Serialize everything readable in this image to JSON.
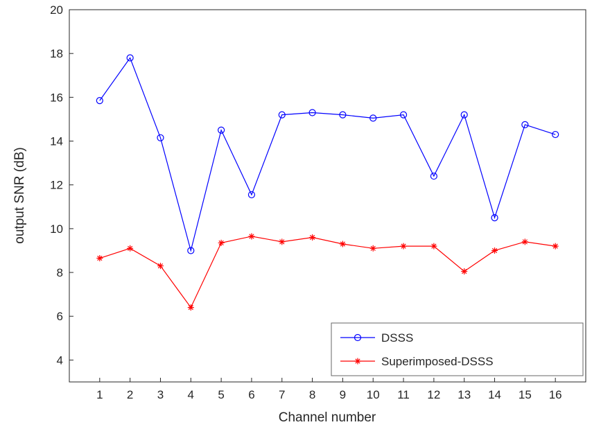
{
  "chart_data": {
    "type": "line",
    "title": "",
    "xlabel": "Channel number",
    "ylabel": "output SNR (dB)",
    "x": [
      1,
      2,
      3,
      4,
      5,
      6,
      7,
      8,
      9,
      10,
      11,
      12,
      13,
      14,
      15,
      16
    ],
    "series": [
      {
        "name": "DSSS",
        "color": "#0000ff",
        "marker": "circle",
        "values": [
          15.85,
          17.8,
          14.15,
          9.0,
          14.5,
          11.55,
          15.2,
          15.3,
          15.2,
          15.05,
          15.2,
          12.4,
          15.2,
          10.5,
          14.75,
          14.3
        ]
      },
      {
        "name": "Superimposed-DSSS",
        "color": "#ff0000",
        "marker": "asterisk",
        "values": [
          8.65,
          9.1,
          8.3,
          6.4,
          9.35,
          9.65,
          9.4,
          9.6,
          9.3,
          9.1,
          9.2,
          9.2,
          8.05,
          9.0,
          9.4,
          9.2
        ]
      }
    ],
    "xlim": [
      0,
      17
    ],
    "ylim": [
      3,
      20
    ],
    "xticks": [
      1,
      2,
      3,
      4,
      5,
      6,
      7,
      8,
      9,
      10,
      11,
      12,
      13,
      14,
      15,
      16
    ],
    "yticks": [
      4,
      6,
      8,
      10,
      12,
      14,
      16,
      18,
      20
    ],
    "grid": false,
    "legend_position": "inside-bottom-right",
    "colors": {
      "axis": "#262626",
      "tick_label": "#262626",
      "legend_border": "#666666",
      "background": "#ffffff"
    }
  }
}
